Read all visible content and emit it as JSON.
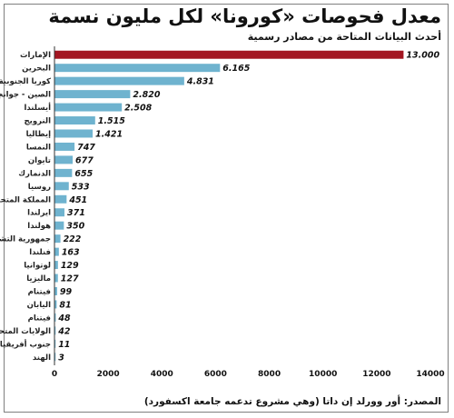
{
  "chart_data": {
    "type": "bar",
    "orientation": "horizontal",
    "title": "معدل فحوصات «كورونا» لكل مليون نسمة",
    "subtitle": "أحدث البيانات المتاحة من مصادر رسمية",
    "source": "المصدر: أور وورلد إن داتا (وهي مشروع تدعمه جامعة اكسفورد)",
    "categories": [
      "الإمارات",
      "البحرين",
      "كوريا الجنوبية",
      "الصين - جوانجدونج",
      "أيسلندا",
      "النرويج",
      "إيطاليا",
      "النمسا",
      "تايوان",
      "الدنمارك",
      "روسيا",
      "المملكة المتحدة",
      "ايرلندا",
      "هولندا",
      "جمهورية التشيك",
      "فنلندا",
      "لوتوانيا",
      "ماليزيا",
      "فيتنام",
      "اليابان",
      "فيتنام",
      "الولايات المتحدة",
      "جنوب أفريقيا",
      "الهند"
    ],
    "values": [
      13000,
      6165,
      4831,
      2820,
      2508,
      1515,
      1421,
      747,
      677,
      655,
      533,
      451,
      371,
      350,
      222,
      163,
      129,
      127,
      99,
      81,
      48,
      42,
      11,
      3
    ],
    "value_labels": [
      "13.000",
      "6.165",
      "4.831",
      "2.820",
      "2.508",
      "1.515",
      "1.421",
      "747",
      "677",
      "655",
      "533",
      "451",
      "371",
      "350",
      "222",
      "163",
      "129",
      "127",
      "99",
      "81",
      "48",
      "42",
      "11",
      "3"
    ],
    "highlight_index": 0,
    "colors": {
      "highlight": "#a31621",
      "bar": "#6fb3cf",
      "axis": "#333333"
    },
    "xlim": [
      0,
      14000
    ],
    "xticks": [
      "0",
      "2000",
      "4000",
      "6000",
      "8000",
      "10000",
      "12000",
      "14000"
    ],
    "grid": false,
    "legend": "none"
  }
}
